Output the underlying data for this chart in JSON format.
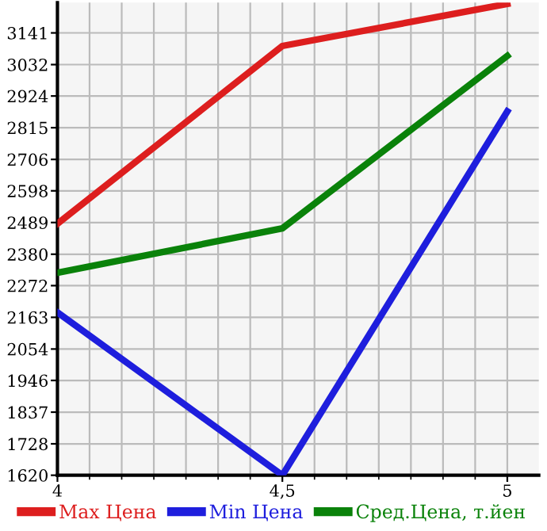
{
  "chart_data": {
    "type": "line",
    "x": [
      4,
      4.5,
      5
    ],
    "series": [
      {
        "name": "Max Цена",
        "color": "#dd1e1e",
        "values": [
          2485,
          3096,
          3241
        ]
      },
      {
        "name": "Min Цена",
        "color": "#1e1edd",
        "values": [
          2180,
          1620,
          2871
        ]
      },
      {
        "name": "Сред.Цена, т.йен",
        "color": "#0a820a",
        "values": [
          2316,
          2469,
          3062
        ]
      }
    ],
    "xlim": [
      4,
      5.07
    ],
    "xticks": [
      4,
      {
        "value": 4.5,
        "label": "4,5"
      },
      5
    ],
    "ylim": [
      1620,
      3245
    ],
    "yticks": [
      1620,
      1728,
      1837,
      1946,
      2054,
      2163,
      2272,
      2380,
      2489,
      2598,
      2706,
      2815,
      2924,
      3032,
      3141
    ],
    "grid": true,
    "legend": "bottom",
    "marker": "none",
    "line_style": "solid"
  }
}
